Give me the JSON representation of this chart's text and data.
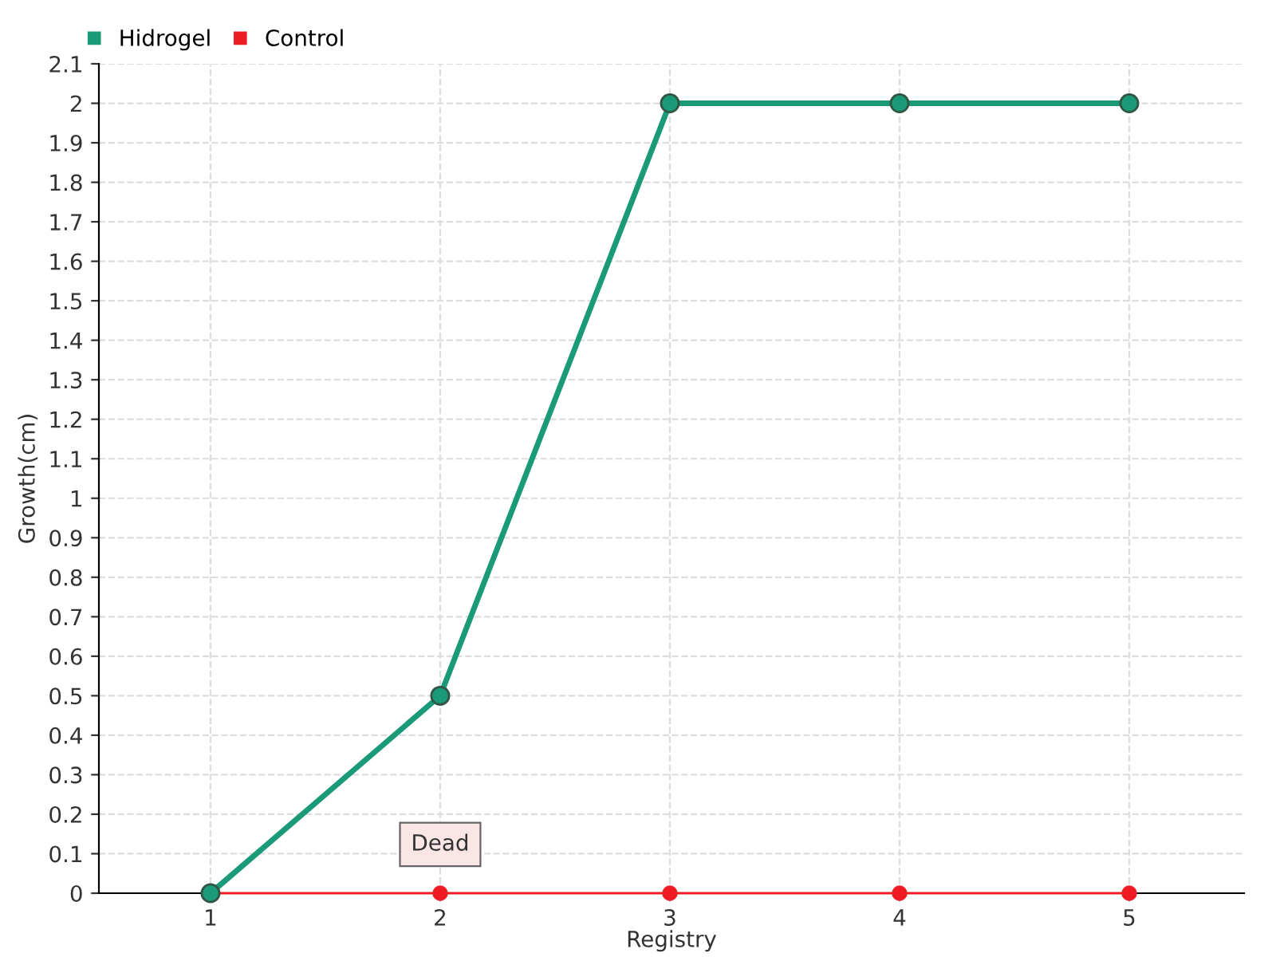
{
  "chart_data": {
    "type": "line",
    "xlabel": "Registry",
    "ylabel": "Growth(cm)",
    "categories": [
      "1",
      "2",
      "3",
      "4",
      "5"
    ],
    "series": [
      {
        "name": "Hidrogel",
        "color": "#1b9a78",
        "values": [
          0,
          0.5,
          2,
          2,
          2
        ]
      },
      {
        "name": "Control",
        "color": "#ee1c25",
        "values": [
          0,
          0,
          0,
          0,
          0
        ]
      }
    ],
    "ylim": [
      0,
      2.1
    ],
    "yticks": [
      0,
      0.1,
      0.2,
      0.3,
      0.4,
      0.5,
      0.6,
      0.7,
      0.8,
      0.9,
      1,
      1.1,
      1.2,
      1.3,
      1.4,
      1.5,
      1.6,
      1.7,
      1.8,
      1.9,
      2,
      2.1
    ],
    "grid": true,
    "legend": "top left",
    "marker": "circle",
    "line_style": "solid",
    "annotations": [
      {
        "text": "Dead",
        "x": "2",
        "y": 0
      }
    ]
  }
}
